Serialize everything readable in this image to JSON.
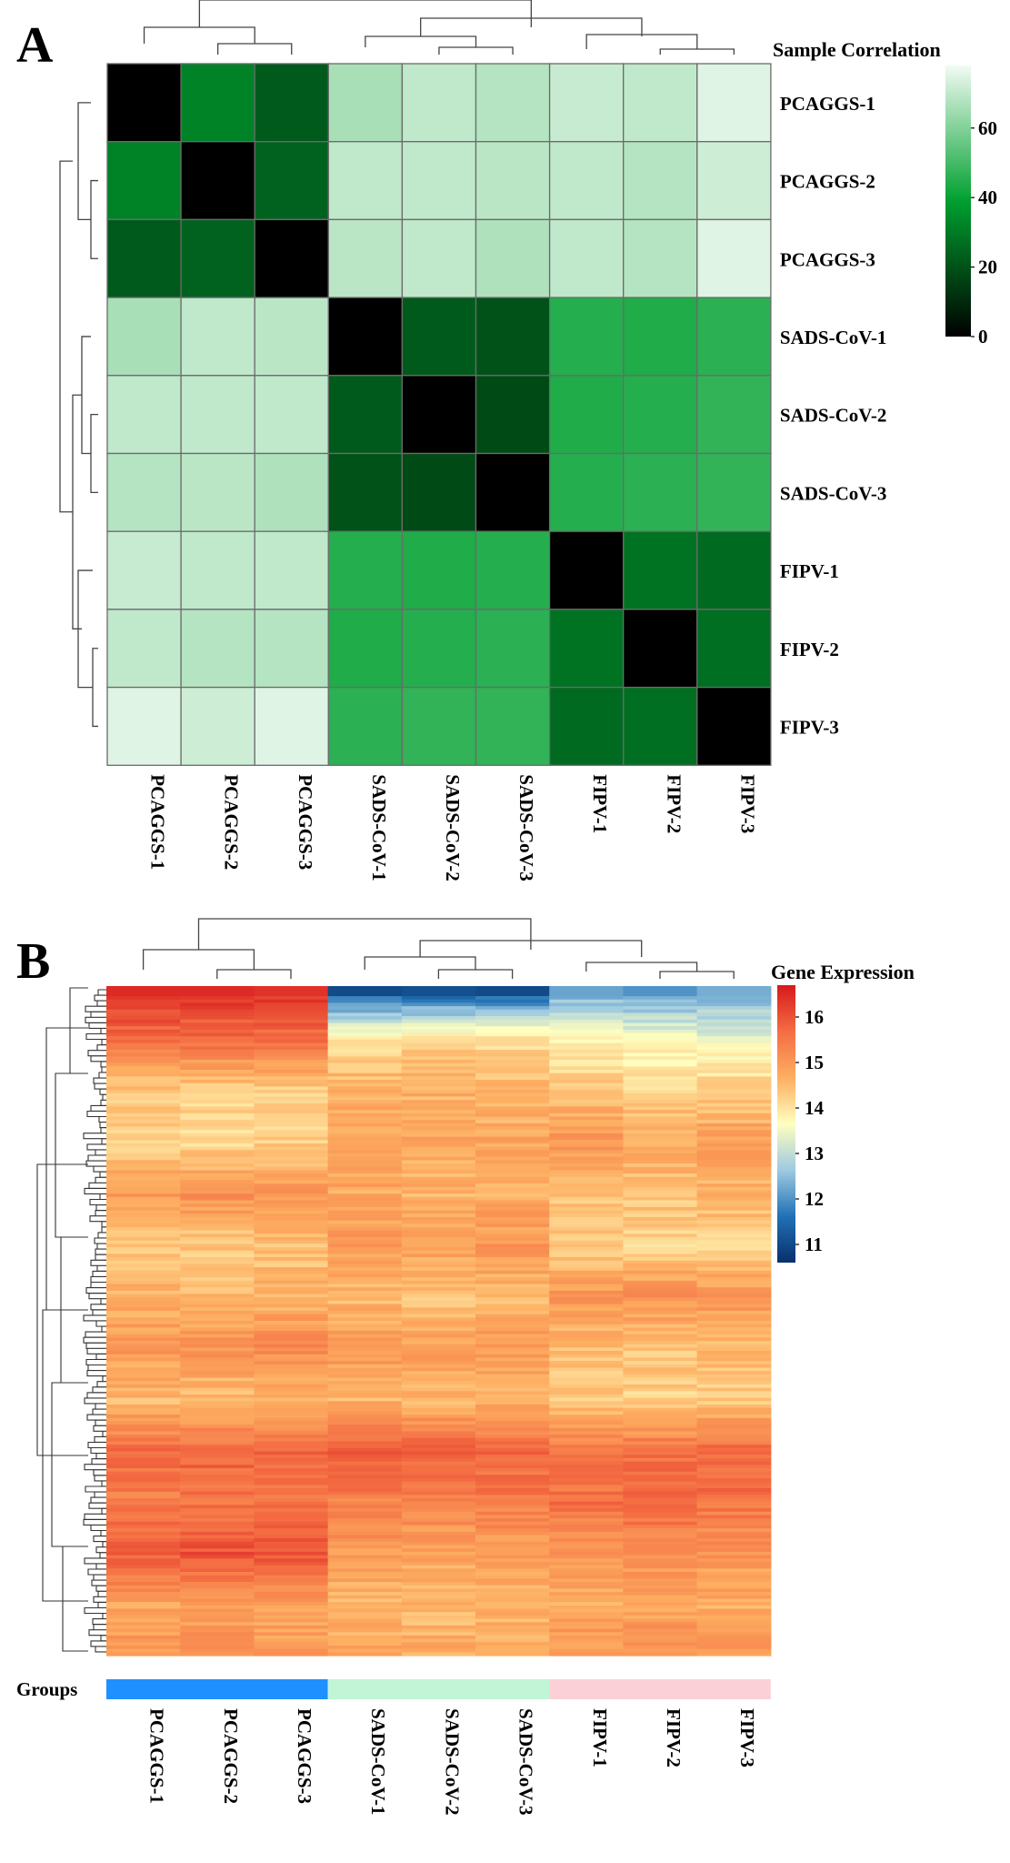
{
  "chart_data": [
    {
      "panel": "A",
      "type": "heatmap",
      "legend_title": "Sample Correlation",
      "legend_ticks": [
        0,
        20,
        40,
        60
      ],
      "colorbar_range": [
        0,
        78
      ],
      "colors": [
        "#000000",
        "#00a030",
        "#f2fbf3"
      ],
      "row_labels": [
        "PCAGGS-1",
        "PCAGGS-2",
        "PCAGGS-3",
        "SADS-CoV-1",
        "SADS-CoV-2",
        "SADS-CoV-3",
        "FIPV-1",
        "FIPV-2",
        "FIPV-3"
      ],
      "col_labels": [
        "PCAGGS-1",
        "PCAGGS-2",
        "PCAGGS-3",
        "SADS-CoV-1",
        "SADS-CoV-2",
        "SADS-CoV-3",
        "FIPV-1",
        "FIPV-2",
        "FIPV-3"
      ],
      "values": [
        [
          0,
          32,
          22,
          66,
          70,
          68,
          71,
          70,
          75
        ],
        [
          32,
          0,
          24,
          70,
          70,
          69,
          70,
          68,
          72
        ],
        [
          22,
          24,
          0,
          69,
          70,
          67,
          70,
          68,
          75
        ],
        [
          66,
          70,
          69,
          0,
          22,
          20,
          45,
          44,
          46
        ],
        [
          70,
          70,
          70,
          22,
          0,
          18,
          44,
          45,
          47
        ],
        [
          68,
          69,
          67,
          20,
          18,
          0,
          45,
          46,
          47
        ],
        [
          71,
          70,
          70,
          45,
          44,
          45,
          0,
          28,
          26
        ],
        [
          70,
          68,
          68,
          44,
          45,
          46,
          28,
          0,
          27
        ],
        [
          75,
          72,
          75,
          46,
          47,
          47,
          26,
          27,
          0
        ]
      ]
    },
    {
      "panel": "B",
      "type": "heatmap",
      "legend_title": "Gene Expression",
      "legend_ticks": [
        11,
        12,
        13,
        14,
        15,
        16
      ],
      "colorbar_range": [
        10.6,
        16.7
      ],
      "colors": [
        "#08306b",
        "#2171b5",
        "#9ecae1",
        "#ffffbf",
        "#fdae61",
        "#f46d43",
        "#d7191c"
      ],
      "col_labels": [
        "PCAGGS-1",
        "PCAGGS-2",
        "PCAGGS-3",
        "SADS-CoV-1",
        "SADS-CoV-2",
        "SADS-CoV-3",
        "FIPV-1",
        "FIPV-2",
        "FIPV-3"
      ],
      "groups_label": "Groups",
      "groups": [
        {
          "color": "#1e90ff",
          "columns": [
            0,
            1,
            2
          ]
        },
        {
          "color": "#c1f5d5",
          "columns": [
            3,
            4,
            5
          ]
        },
        {
          "color": "#fbd0d6",
          "columns": [
            6,
            7,
            8
          ]
        }
      ],
      "row_bands": [
        [
          16.5,
          16.5,
          16.4,
          11.0,
          11.1,
          11.0,
          12.2,
          12.0,
          12.3
        ],
        [
          15.6,
          15.7,
          15.6,
          14.1,
          14.2,
          14.1,
          13.7,
          13.6,
          13.4
        ],
        [
          14.3,
          14.2,
          14.3,
          14.6,
          14.6,
          14.5,
          14.4,
          14.2,
          14.3
        ],
        [
          14.2,
          14.1,
          14.2,
          14.9,
          14.8,
          14.8,
          15.0,
          14.8,
          14.9
        ],
        [
          15.0,
          15.1,
          15.0,
          14.7,
          14.6,
          14.7,
          14.4,
          14.4,
          14.6
        ],
        [
          14.4,
          14.3,
          14.4,
          15.0,
          14.9,
          15.0,
          14.3,
          14.2,
          14.2
        ],
        [
          14.6,
          14.5,
          14.6,
          14.5,
          14.4,
          14.5,
          15.0,
          15.1,
          15.0
        ],
        [
          15.0,
          15.1,
          15.2,
          15.0,
          14.9,
          15.0,
          14.5,
          14.4,
          14.5
        ],
        [
          14.5,
          14.4,
          14.6,
          14.6,
          14.5,
          14.6,
          14.3,
          14.2,
          14.3
        ],
        [
          15.7,
          15.8,
          15.8,
          15.8,
          15.9,
          15.8,
          15.6,
          15.6,
          15.7
        ],
        [
          15.4,
          15.5,
          15.5,
          15.4,
          15.3,
          15.4,
          15.6,
          15.7,
          15.6
        ],
        [
          15.9,
          16.0,
          16.0,
          14.9,
          14.8,
          14.9,
          15.0,
          15.1,
          15.0
        ],
        [
          14.8,
          14.9,
          14.8,
          14.6,
          14.5,
          14.6,
          14.7,
          14.8,
          14.7
        ],
        [
          15.0,
          15.1,
          15.0,
          14.8,
          14.7,
          14.8,
          15.1,
          15.2,
          15.1
        ]
      ]
    }
  ]
}
